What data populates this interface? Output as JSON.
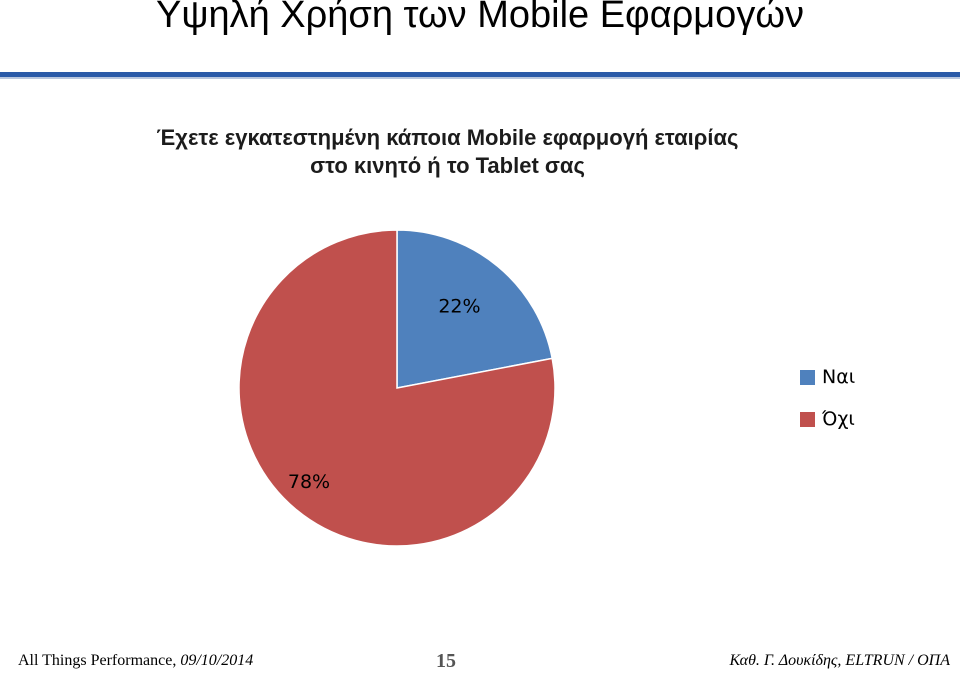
{
  "slide": {
    "title": "Υψηλή Χρήση των Mobile Εφαρμογών"
  },
  "chart_data": {
    "type": "pie",
    "title_lines": [
      "Έχετε εγκατεστημένη κάποια Mobile εφαρμογή εταιρίας",
      "στο κινητό ή το Tablet σας"
    ],
    "categories": [
      "Ναι",
      "Όχι"
    ],
    "values": [
      22,
      78
    ],
    "value_labels": [
      "22%",
      "78%"
    ],
    "colors": [
      "#4f81bd",
      "#c0504d"
    ],
    "legend_position": "right"
  },
  "footer": {
    "left_text": "All Things Performance, ",
    "left_date": "09/10/2014",
    "page_number": "15",
    "right_text": "Καθ. Γ. Δουκίδης, ELTRUN / ΟΠΑ"
  }
}
